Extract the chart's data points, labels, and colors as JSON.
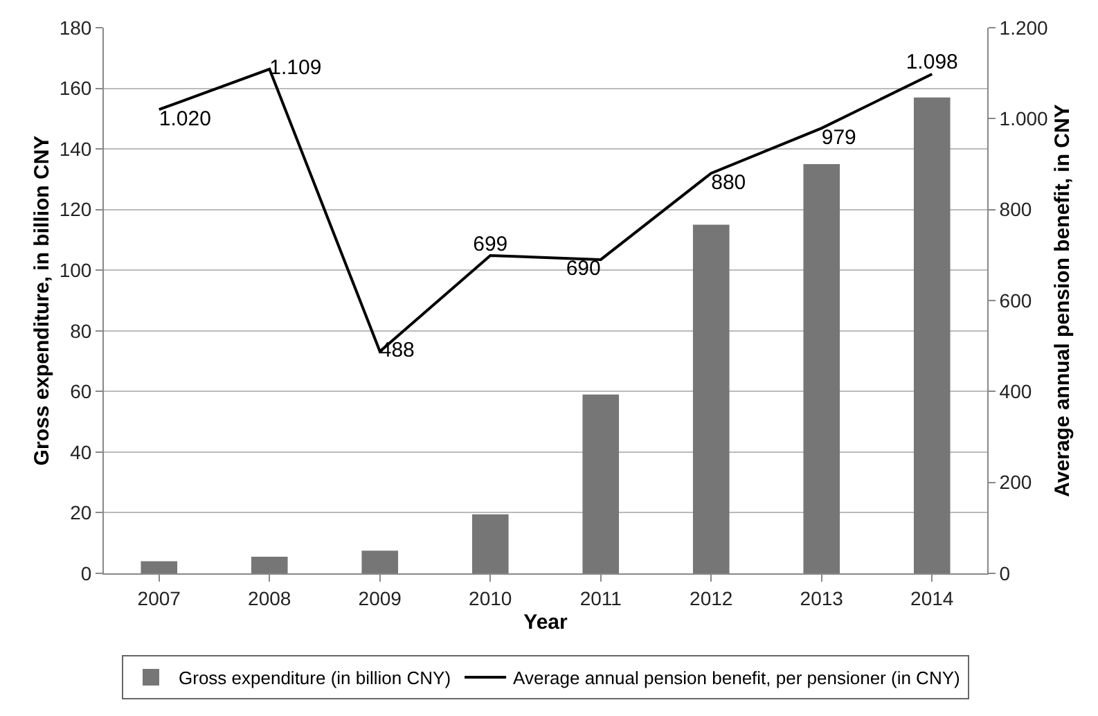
{
  "chart_data": {
    "type": "bar",
    "categories": [
      "2007",
      "2008",
      "2009",
      "2010",
      "2011",
      "2012",
      "2013",
      "2014"
    ],
    "xlabel": "Year",
    "ylabel": "Gross expenditure, in billion CNY",
    "y2label": "Average annual pension benefit, in CNY",
    "ylim": [
      0,
      180
    ],
    "yticks": [
      0,
      20,
      40,
      60,
      80,
      100,
      120,
      140,
      160,
      180
    ],
    "y2lim": [
      0,
      1200
    ],
    "y2ticks": [
      0,
      200,
      400,
      600,
      800,
      {
        "value": 1000,
        "label": "1.000"
      },
      {
        "value": 1200,
        "label": "1.200"
      }
    ],
    "grid": "y",
    "legend": "bottom",
    "series": [
      {
        "name": "Gross expenditure (in billion CNY)",
        "color": "#767676",
        "values": [
          4,
          5.5,
          7.5,
          19.5,
          59,
          115,
          135,
          157
        ]
      },
      {
        "name": "Average annual pension benefit, per pensioner (in CNY)",
        "type": "line",
        "axis": "y2",
        "color": "#000000",
        "values": [
          1020,
          1109,
          488,
          699,
          690,
          880,
          979,
          1098
        ],
        "value_labels": [
          "1.020",
          "1.109",
          "488",
          "699",
          "690",
          "880",
          "979",
          "1.098"
        ]
      }
    ]
  }
}
